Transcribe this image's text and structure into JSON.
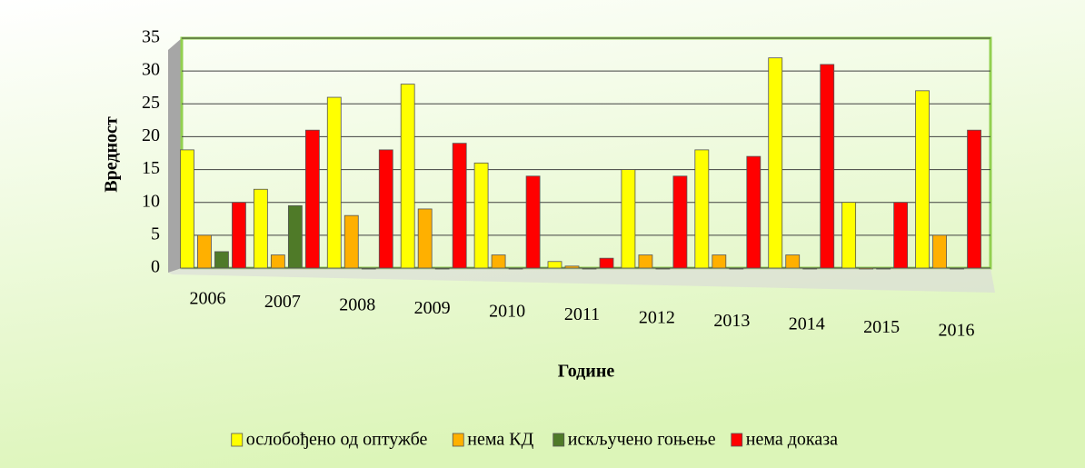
{
  "chart_data": {
    "type": "bar",
    "y_label": "Вредност",
    "x_label": "Године",
    "categories": [
      "2006",
      "2007",
      "2008",
      "2009",
      "2010",
      "2011",
      "2012",
      "2013",
      "2014",
      "2015",
      "2016"
    ],
    "series": [
      {
        "name": "ослобођено од оптужбе",
        "color": "#ffff00",
        "values": [
          18,
          12,
          26,
          28,
          16,
          1,
          15,
          18,
          32,
          10,
          27
        ]
      },
      {
        "name": "нема КД",
        "color": "#ffb000",
        "values": [
          5,
          2,
          8,
          9,
          2,
          0.3,
          2,
          2,
          2,
          0,
          5
        ]
      },
      {
        "name": "искључено гоњење",
        "color": "#4f7a28",
        "values": [
          2.5,
          9.5,
          0,
          0,
          0,
          0,
          0,
          0,
          0,
          0,
          0
        ]
      },
      {
        "name": "нема доказа",
        "color": "#ff0000",
        "values": [
          10,
          21,
          18,
          19,
          14,
          1.5,
          14,
          17,
          31,
          10,
          21
        ]
      }
    ],
    "ylim": [
      0,
      35
    ],
    "yticks": [
      0,
      5,
      10,
      15,
      20,
      25,
      30,
      35
    ],
    "grid": true,
    "legend": "bottom"
  }
}
